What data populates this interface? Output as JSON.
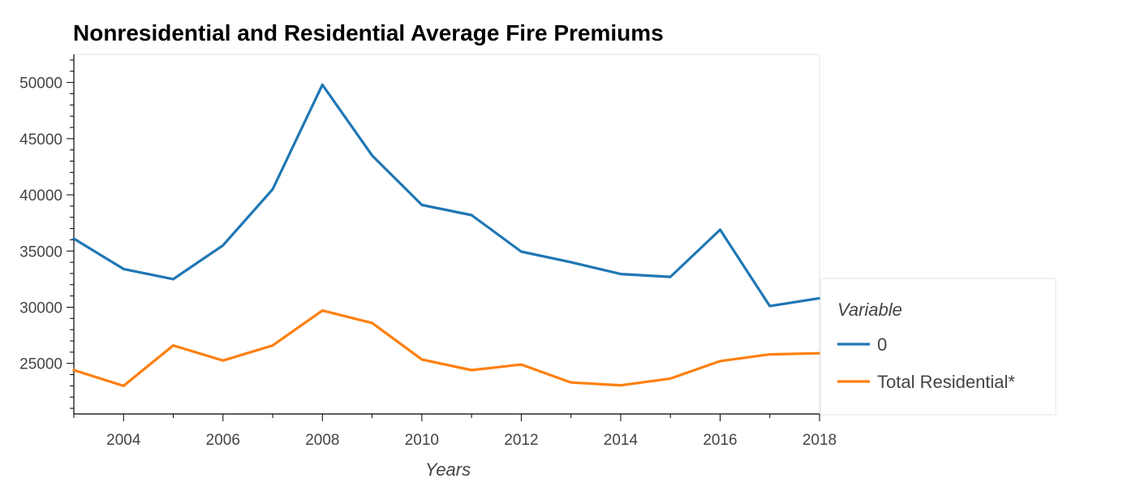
{
  "chart_data": {
    "type": "line",
    "title": "Nonresidential and Residential Average Fire Premiums",
    "xlabel": "Years",
    "ylabel": "",
    "xlim": [
      2003,
      2018
    ],
    "ylim": [
      20500,
      52500
    ],
    "x_ticks": [
      2004,
      2006,
      2008,
      2010,
      2012,
      2014,
      2016,
      2018
    ],
    "x_tick_labels": [
      "2004",
      "2006",
      "2008",
      "2010",
      "2012",
      "2014",
      "2016",
      "2018"
    ],
    "y_ticks": [
      25000,
      30000,
      35000,
      40000,
      45000,
      50000
    ],
    "y_tick_labels": [
      "25000",
      "30000",
      "35000",
      "40000",
      "45000",
      "50000"
    ],
    "x": [
      2003,
      2004,
      2005,
      2006,
      2007,
      2008,
      2009,
      2010,
      2011,
      2012,
      2013,
      2014,
      2015,
      2016,
      2017,
      2018
    ],
    "series": [
      {
        "name": "0",
        "color": "#1f77b4",
        "values": [
          36100,
          33400,
          32500,
          35500,
          40500,
          49800,
          43500,
          39100,
          38200,
          34950,
          34000,
          32950,
          32700,
          36900,
          30100,
          30800
        ]
      },
      {
        "name": "Total Residential*",
        "color": "#ff7f0e",
        "values": [
          24400,
          23000,
          26600,
          25250,
          26600,
          29700,
          28600,
          25350,
          24400,
          24900,
          23300,
          23050,
          23650,
          25200,
          25800,
          25900
        ]
      }
    ],
    "legend": {
      "title": "Variable",
      "placement": "right"
    },
    "grid": false
  }
}
